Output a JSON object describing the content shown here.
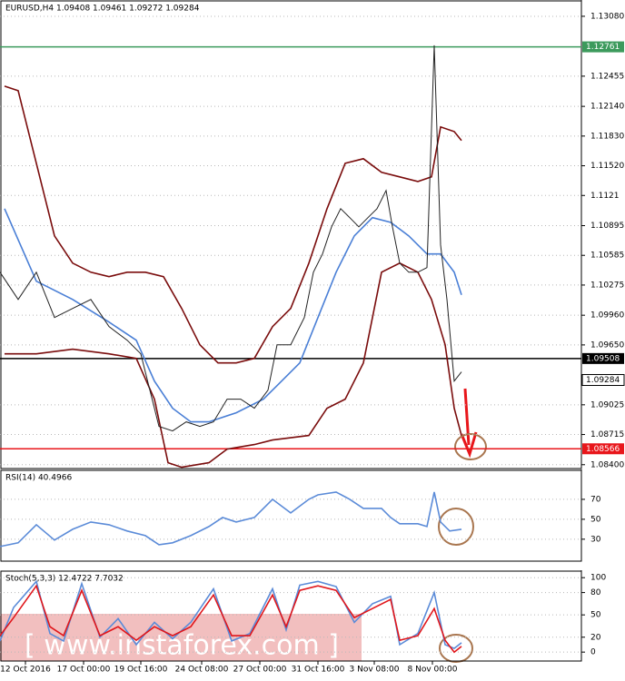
{
  "chart_data": [
    {
      "type": "line",
      "title": "EURUSD,H4  1.09408 1.09461 1.09272 1.09284",
      "xlim": [
        0,
        128
      ],
      "ylim": [
        1.0836,
        1.1325
      ],
      "grid": true,
      "yticks": [
        {
          "value": 1.1308,
          "label": "1.13080"
        },
        {
          "value": 1.12455,
          "label": "1.12455"
        },
        {
          "value": 1.1214,
          "label": "1.12140"
        },
        {
          "value": 1.1183,
          "label": "1.11830"
        },
        {
          "value": 1.1152,
          "label": "1.11520"
        },
        1.1121,
        1.10895,
        1.10585,
        1.10275,
        {
          "value": 1.0996,
          "label": "1.09960"
        },
        {
          "value": 1.0965,
          "label": "1.09650"
        },
        1.09025,
        1.08715,
        {
          "value": 1.084,
          "label": "1.08400"
        }
      ],
      "levels": [
        {
          "value": 1.12761,
          "label": "1.12761",
          "color": "#3c9a5c"
        },
        {
          "value": 1.09508,
          "label": "1.09508",
          "color": "#000000"
        },
        {
          "value": 1.08566,
          "label": "1.08566",
          "color": "#e8161b"
        }
      ],
      "price_label": {
        "value": 1.09284,
        "label": "1.09284"
      },
      "series": [
        {
          "color": "#7a0c0c",
          "x": [
            1,
            4,
            8,
            12,
            16,
            20,
            24,
            28,
            32,
            36,
            40,
            44,
            48,
            52,
            56,
            60,
            64,
            68,
            72,
            76,
            80,
            84,
            88,
            92,
            95,
            97,
            100,
            101.6
          ],
          "values": [
            1.12351,
            1.12303,
            1.11546,
            1.10788,
            1.10504,
            1.10409,
            1.10362,
            1.10409,
            1.10409,
            1.10362,
            1.10031,
            1.09652,
            1.09462,
            1.09462,
            1.0951,
            1.09841,
            1.10031,
            1.10504,
            1.11072,
            1.11546,
            1.11593,
            1.11451,
            1.11404,
            1.11356,
            1.11404,
            1.11925,
            1.11877,
            1.11783
          ]
        },
        {
          "color": "#7a0c0c",
          "x": [
            1,
            8,
            16,
            24,
            30,
            34,
            37,
            40,
            46,
            50,
            56,
            60,
            68,
            72,
            76,
            80,
            84,
            88,
            92,
            95,
            98,
            100,
            101.6
          ],
          "values": [
            1.09557,
            1.09557,
            1.09605,
            1.09557,
            1.0951,
            1.09084,
            1.08421,
            1.08373,
            1.08421,
            1.08563,
            1.0861,
            1.08658,
            1.08705,
            1.08989,
            1.09084,
            1.09462,
            1.10409,
            1.10504,
            1.10409,
            1.10125,
            1.09652,
            1.08989,
            1.08705
          ]
        },
        {
          "color": "#4a7fd6",
          "x": [
            1,
            8,
            16,
            24,
            30,
            34,
            38,
            42,
            46,
            52,
            58,
            62,
            66,
            70,
            74,
            78,
            82,
            86,
            90,
            94,
            97,
            100,
            101.6
          ],
          "values": [
            1.11072,
            1.10315,
            1.10125,
            1.09889,
            1.09699,
            1.09273,
            1.08989,
            1.08847,
            1.08847,
            1.08942,
            1.09084,
            1.09273,
            1.09462,
            1.09936,
            1.10409,
            1.10788,
            1.10978,
            1.1093,
            1.10788,
            1.10599,
            1.10599,
            1.10409,
            1.10173
          ]
        },
        {
          "color": "#222222",
          "x": [
            0,
            4,
            8,
            12,
            16,
            20,
            24,
            28,
            31,
            33,
            35,
            38,
            41,
            44,
            47,
            50,
            53,
            56,
            59,
            61,
            64,
            67,
            69,
            71,
            73,
            75,
            77,
            79,
            81,
            83,
            85,
            86.4,
            88,
            90,
            92,
            94,
            95.6,
            97,
            98.4,
            100,
            101.6
          ],
          "values": [
            1.10409,
            1.10125,
            1.10409,
            1.09936,
            1.10031,
            1.10125,
            1.09841,
            1.09699,
            1.09557,
            1.09178,
            1.088,
            1.08752,
            1.08847,
            1.088,
            1.08847,
            1.09084,
            1.09084,
            1.08989,
            1.09178,
            1.09652,
            1.09652,
            1.09936,
            1.10409,
            1.10599,
            1.10883,
            1.11072,
            1.10978,
            1.10883,
            1.10978,
            1.11072,
            1.11262,
            1.10883,
            1.10504,
            1.10409,
            1.10409,
            1.10457,
            1.12777,
            1.10694,
            1.10125,
            1.09273,
            1.09368
          ]
        }
      ]
    },
    {
      "type": "line",
      "title": "RSI(14) 40.4966",
      "xlim": [
        0,
        128
      ],
      "ylim": [
        8,
        100
      ],
      "grid": true,
      "yticks": [
        70,
        50,
        30
      ],
      "series": [
        {
          "color": "#5b8bd8",
          "x": [
            0,
            4,
            8,
            12,
            16,
            20,
            24,
            28,
            32,
            35,
            38,
            42,
            46,
            49,
            52,
            56,
            60,
            64,
            68,
            70,
            74,
            77,
            80,
            84,
            86,
            88,
            92,
            94,
            95.6,
            97,
            99,
            101.6
          ],
          "values": [
            22.7,
            26.4,
            44.5,
            29.1,
            40,
            47.3,
            44.5,
            38.2,
            33.6,
            24.5,
            26.4,
            33.6,
            42.7,
            51.8,
            47.3,
            51.8,
            70,
            56.4,
            70,
            74.5,
            77.3,
            70,
            60.9,
            60.9,
            51.8,
            45.5,
            45.5,
            42.7,
            77.3,
            47.3,
            38.2,
            40
          ]
        }
      ]
    },
    {
      "type": "line",
      "title": "Stoch(5,3,3) 12.4722 7.7032",
      "xlim": [
        0,
        128
      ],
      "ylim": [
        -12,
        110
      ],
      "grid": true,
      "yticks": [
        100,
        80,
        50,
        20,
        0
      ],
      "xticks": [
        {
          "value": 5.6,
          "label": "12 Oct 2016"
        },
        {
          "value": 18.4,
          "label": "17 Oct 00:00"
        },
        {
          "value": 31,
          "label": "19 Oct 16:00"
        },
        {
          "value": 44.4,
          "label": "24 Oct 08:00"
        },
        {
          "value": 57.2,
          "label": "27 Oct 00:00"
        },
        {
          "value": 70,
          "label": "31 Oct 16:00"
        },
        {
          "value": 82.4,
          "label": "3 Nov 08:00"
        },
        {
          "value": 95.2,
          "label": "8 Nov 00:00"
        }
      ],
      "series": [
        {
          "color": "#5b8bd8",
          "x": [
            0,
            3,
            8,
            11,
            14,
            18,
            22,
            26,
            30,
            34,
            38,
            42,
            47,
            51,
            55,
            60,
            63,
            66,
            70,
            74,
            78,
            82,
            86,
            88,
            92,
            95.6,
            98,
            100,
            101.6
          ],
          "values": [
            15,
            60,
            95,
            25,
            15,
            92,
            20,
            45,
            10,
            40,
            18,
            40,
            85,
            15,
            25,
            85,
            30,
            90,
            95,
            88,
            40,
            65,
            75,
            10,
            25,
            80,
            10,
            5,
            12.5
          ]
        },
        {
          "color": "#e0161b",
          "x": [
            0,
            3,
            8,
            11,
            14,
            18,
            22,
            26,
            30,
            34,
            38,
            42,
            47,
            51,
            55,
            60,
            63,
            66,
            70,
            74,
            78,
            82,
            86,
            88,
            92,
            95.6,
            98,
            100,
            101.6
          ],
          "values": [
            22,
            46.3,
            89,
            34.1,
            22,
            82.9,
            22,
            34.1,
            15.9,
            34.1,
            22,
            34.1,
            76.8,
            22,
            22,
            76.8,
            34.1,
            82.9,
            89,
            82.9,
            46.3,
            58.5,
            70.7,
            15.9,
            22,
            58.5,
            15.9,
            0,
            7.7
          ]
        }
      ]
    }
  ],
  "watermark": "[ www.instaforex.com ]"
}
